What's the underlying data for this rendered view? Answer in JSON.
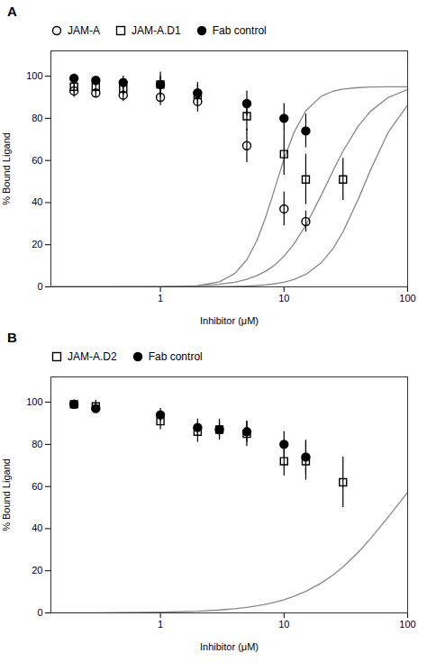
{
  "chart_data": [
    {
      "type": "scatter",
      "title": "A",
      "xlabel": "Inhibitor (μM)",
      "ylabel": "% Bound Ligand",
      "log": "x",
      "xlim": [
        0.13,
        100
      ],
      "xticks": [
        1,
        10,
        100
      ],
      "ylim": [
        0,
        112
      ],
      "yticks": [
        0,
        20,
        40,
        60,
        80,
        100
      ],
      "series": [
        {
          "name": "JAM-A",
          "marker": "open circle",
          "color": "#000000",
          "x": [
            0.2,
            0.3,
            0.5,
            1.0,
            2.0,
            5.0,
            10.0,
            15.0
          ],
          "values": [
            93,
            92,
            91,
            90,
            88,
            67,
            37,
            31
          ],
          "errors": [
            3,
            2,
            3,
            4,
            5,
            8,
            8,
            5
          ]
        },
        {
          "name": "JAM-A.D1",
          "marker": "open square",
          "color": "#000000",
          "x": [
            0.2,
            0.3,
            0.5,
            1.0,
            2.0,
            5.0,
            10.0,
            15.0,
            30.0
          ],
          "values": [
            95,
            95,
            94,
            96,
            91,
            81,
            63,
            51,
            51
          ],
          "errors": [
            3,
            3,
            3,
            6,
            5,
            7,
            10,
            12,
            10
          ]
        },
        {
          "name": "Fab control",
          "marker": "filled circle",
          "color": "#000000",
          "x": [
            0.2,
            0.3,
            0.5,
            1.0,
            2.0,
            5.0,
            10.0,
            15.0
          ],
          "values": [
            99,
            98,
            97,
            96,
            92,
            87,
            80,
            74
          ],
          "errors": [
            2,
            2,
            3,
            4,
            5,
            6,
            7,
            8
          ]
        }
      ],
      "curves": [
        {
          "color": "#888888",
          "x": [
            0.13,
            0.3,
            1,
            2,
            3,
            4,
            5,
            6,
            7,
            8,
            9,
            10,
            12,
            15,
            20,
            25,
            30,
            40,
            50,
            70,
            100
          ],
          "values": [
            4e-05,
            0.00079,
            0.053,
            0.596,
            2.419,
            6.338,
            12.826,
            21.67,
            31.95,
            42.47,
            52.23,
            60.66,
            73.13,
            83.55,
            90.47,
            92.87,
            93.86,
            94.58,
            94.81,
            94.94,
            94.98
          ]
        },
        {
          "color": "#888888",
          "x": [
            0.13,
            0.3,
            1,
            2,
            3,
            4,
            5,
            6,
            7,
            8,
            9,
            10,
            12,
            15,
            20,
            25,
            30,
            40,
            50,
            70,
            100
          ],
          "values": [
            0.0012,
            0.0076,
            0.108,
            0.494,
            1.196,
            2.228,
            3.587,
            5.263,
            7.228,
            9.456,
            11.909,
            14.55,
            20.23,
            29.2,
            43.43,
            55.28,
            64.44,
            76.47,
            83.31,
            89.95,
            93.65
          ]
        },
        {
          "color": "#888888",
          "x": [
            0.13,
            0.3,
            1,
            2,
            3,
            4,
            5,
            6,
            7,
            8,
            9,
            10,
            12,
            15,
            20,
            25,
            30,
            40,
            50,
            70,
            100
          ],
          "values": [
            4e-05,
            0.00036,
            0.0072,
            0.0408,
            0.112,
            0.23,
            0.402,
            0.632,
            0.926,
            1.288,
            1.722,
            2.229,
            3.471,
            5.907,
            11.4,
            18.33,
            26.09,
            41.84,
            55.41,
            73.61,
            86.28
          ]
        }
      ]
    },
    {
      "type": "scatter",
      "title": "B",
      "xlabel": "Inhibitor (μM)",
      "ylabel": "% Bound Ligand",
      "log": "x",
      "xlim": [
        0.13,
        100
      ],
      "xticks": [
        1,
        10,
        100
      ],
      "ylim": [
        0,
        112
      ],
      "yticks": [
        0,
        20,
        40,
        60,
        80,
        100
      ],
      "series": [
        {
          "name": "JAM-A.D2",
          "marker": "open square",
          "color": "#000000",
          "x": [
            0.2,
            0.3,
            1.0,
            2.0,
            3.0,
            5.0,
            10.0,
            15.0,
            30.0
          ],
          "values": [
            99,
            98,
            91,
            86,
            87,
            85,
            72,
            72,
            62
          ],
          "errors": [
            2,
            3,
            4,
            5,
            5,
            6,
            7,
            9,
            12
          ]
        },
        {
          "name": "Fab control",
          "marker": "filled circle",
          "color": "#000000",
          "x": [
            0.2,
            0.3,
            1.0,
            2.0,
            3.0,
            5.0,
            10.0,
            15.0
          ],
          "values": [
            99,
            97,
            94,
            88,
            87,
            86,
            80,
            74
          ],
          "errors": [
            2,
            2,
            3,
            4,
            4,
            5,
            6,
            8
          ]
        }
      ],
      "curves": [
        {
          "color": "#888888",
          "x": [
            0.13,
            0.3,
            1,
            2,
            3,
            4,
            5,
            6,
            7,
            8,
            9,
            10,
            12,
            15,
            20,
            25,
            30,
            40,
            50,
            70,
            100
          ],
          "values": [
            0.0237,
            0.0701,
            0.335,
            0.82,
            1.381,
            1.995,
            2.648,
            3.333,
            4.042,
            4.773,
            5.519,
            6.277,
            7.825,
            10.19,
            14.16,
            18.06,
            21.84,
            28.88,
            35.19,
            45.67,
            57.21
          ]
        }
      ]
    }
  ]
}
